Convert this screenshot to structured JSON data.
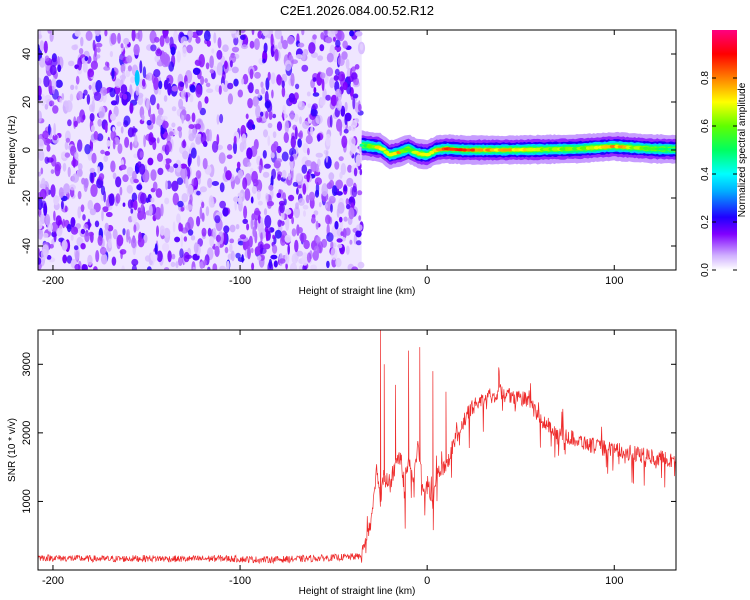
{
  "figure_title": "C2E1.2026.084.00.52.R12",
  "chart_data": [
    {
      "type": "heatmap",
      "title": "C2E1.2026.084.00.52.R12",
      "xlabel": "Height of straight line (km)",
      "ylabel": "Frequency (Hz)",
      "xlim": [
        -208,
        133
      ],
      "ylim": [
        -50,
        50
      ],
      "x_ticks": [
        -200,
        -100,
        0,
        100
      ],
      "y_ticks": [
        -40,
        -20,
        0,
        20,
        40
      ],
      "colorbar": {
        "label": "Normalized spectral amplitude",
        "range": [
          0,
          1
        ],
        "ticks": [
          0,
          0.2,
          0.4,
          0.6,
          0.8
        ],
        "tick_labels": [
          "0.0",
          "0.2",
          "0.4",
          "0.6",
          "0.8"
        ],
        "colors": [
          "#ffffff",
          "#b070ff",
          "#7000ff",
          "#0000ff",
          "#00ffff",
          "#00ff00",
          "#ffff00",
          "#ff8000",
          "#ff0000",
          "#ff00ff"
        ]
      },
      "noise_region": {
        "x_range": [
          -208,
          -35
        ],
        "y_range": [
          -50,
          50
        ],
        "amplitude": "0.0-0.25"
      },
      "signal_trace": {
        "x": [
          -35,
          -30,
          -25,
          -20,
          -15,
          -10,
          -5,
          0,
          5,
          10,
          20,
          40,
          60,
          80,
          100,
          110,
          120,
          133
        ],
        "freq": [
          2,
          1.5,
          1,
          -2,
          -1,
          0.5,
          -1.5,
          -2,
          0,
          0.5,
          0,
          0,
          0.2,
          0.5,
          1.5,
          1,
          0.5,
          0.3
        ],
        "peak_amplitude": [
          0.5,
          0.7,
          0.8,
          0.75,
          0.8,
          0.6,
          0.8,
          0.7,
          0.85,
          0.9,
          0.9,
          0.8,
          0.7,
          0.65,
          0.85,
          0.7,
          0.6,
          0.5
        ]
      },
      "outlier": {
        "x": -155,
        "y_range": [
          25,
          35
        ],
        "amplitude": 0.35
      }
    },
    {
      "type": "line",
      "xlabel": "Height of straight line (km)",
      "ylabel": "SNR (10 * v/v)",
      "xlim": [
        -208,
        133
      ],
      "ylim": [
        0,
        3500
      ],
      "x_ticks": [
        -200,
        -100,
        0,
        100
      ],
      "y_ticks": [
        1000,
        2000,
        3000
      ],
      "color": "#ee2a2a",
      "series": [
        {
          "x": [
            -208,
            -190,
            -170,
            -150,
            -130,
            -110,
            -90,
            -70,
            -50,
            -35,
            -30,
            -27,
            -25,
            -23,
            -20,
            -17,
            -15,
            -12,
            -10,
            -7,
            -5,
            -2,
            0,
            3,
            5,
            8,
            10,
            15,
            20,
            25,
            30,
            35,
            40,
            45,
            50,
            55,
            60,
            65,
            70,
            80,
            90,
            100,
            110,
            120,
            133
          ],
          "values": [
            180,
            170,
            160,
            170,
            160,
            170,
            150,
            160,
            180,
            200,
            700,
            1500,
            1000,
            1400,
            1200,
            1500,
            1700,
            1100,
            1600,
            1300,
            1900,
            1100,
            1300,
            1000,
            1400,
            1500,
            1500,
            1900,
            2200,
            2400,
            2500,
            2550,
            2600,
            2550,
            2500,
            2450,
            2200,
            2100,
            2000,
            1900,
            1800,
            1750,
            1700,
            1650,
            1600
          ],
          "spikes": [
            {
              "x": -25,
              "value": 3500
            },
            {
              "x": -23,
              "value": 3000
            },
            {
              "x": -10,
              "value": 3200
            },
            {
              "x": -4,
              "value": 3250
            },
            {
              "x": 3,
              "value": 2900
            },
            {
              "x": -17,
              "value": 2700
            },
            {
              "x": 10,
              "value": 2600
            }
          ],
          "noise_amplitude": 90
        }
      ]
    }
  ]
}
